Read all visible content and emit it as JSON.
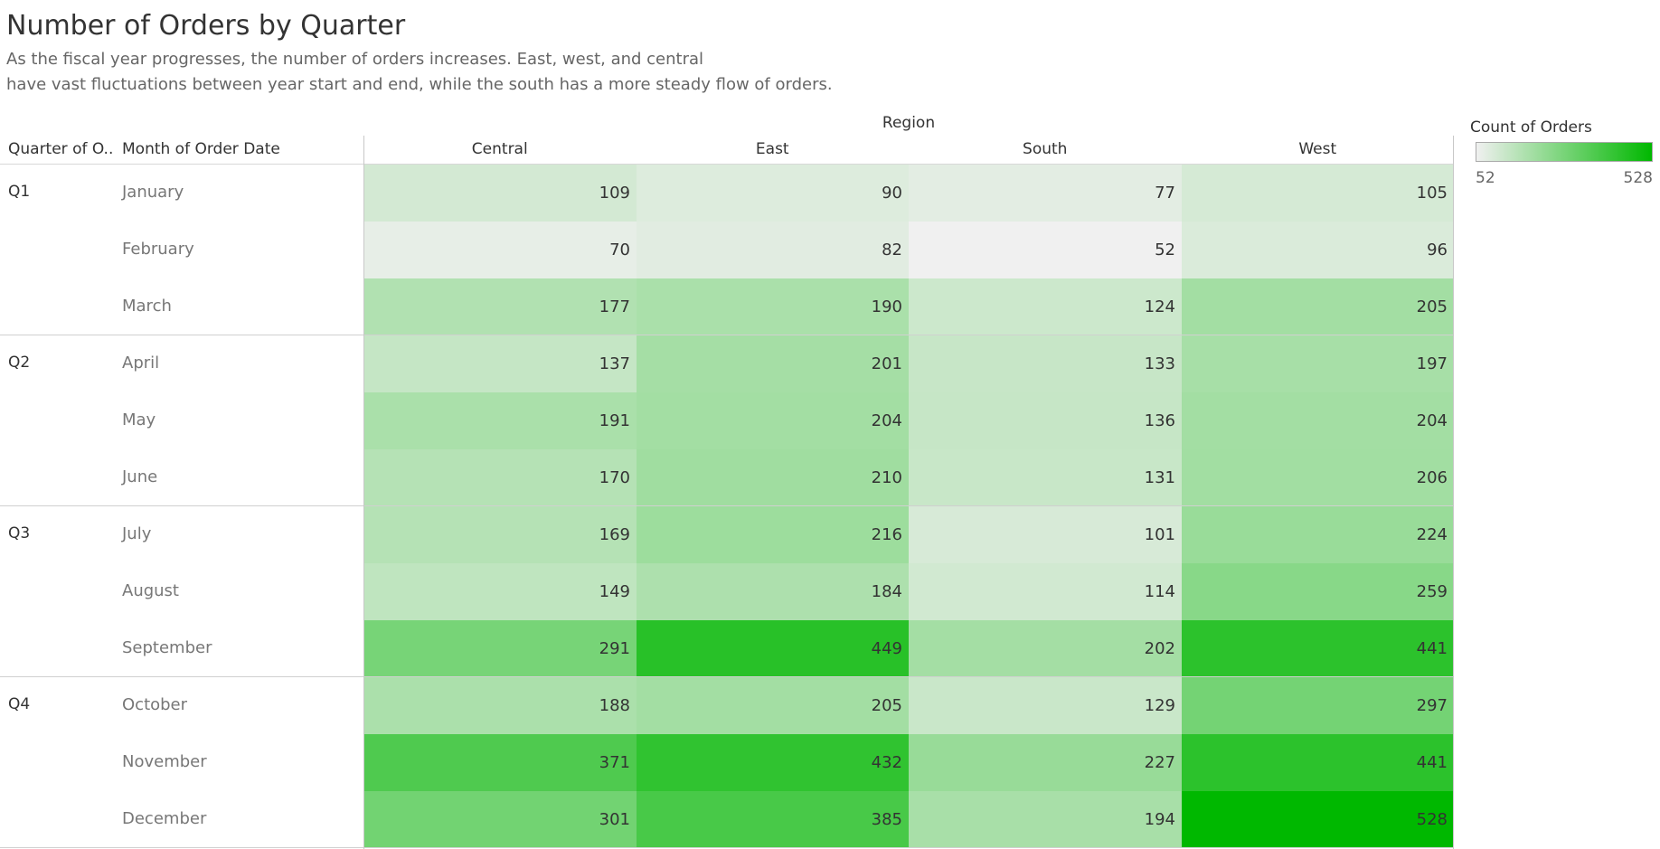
{
  "chart_data": {
    "type": "heatmap",
    "title": "Number of Orders by Quarter",
    "subtitle_lines": [
      "As the fiscal year progresses, the number of orders increases. East, west, and central",
      "have vast fluctuations between year start and end, while the south has a more steady flow of orders."
    ],
    "column_group_label": "Region",
    "row_headers": [
      "Quarter of O..",
      "Month of Order Date"
    ],
    "columns": [
      "Central",
      "East",
      "South",
      "West"
    ],
    "quarters": [
      {
        "label": "Q1",
        "months": [
          {
            "month": "January",
            "values": [
              109,
              90,
              77,
              105
            ]
          },
          {
            "month": "February",
            "values": [
              70,
              82,
              52,
              96
            ]
          },
          {
            "month": "March",
            "values": [
              177,
              190,
              124,
              205
            ]
          }
        ]
      },
      {
        "label": "Q2",
        "months": [
          {
            "month": "April",
            "values": [
              137,
              201,
              133,
              197
            ]
          },
          {
            "month": "May",
            "values": [
              191,
              204,
              136,
              204
            ]
          },
          {
            "month": "June",
            "values": [
              170,
              210,
              131,
              206
            ]
          }
        ]
      },
      {
        "label": "Q3",
        "months": [
          {
            "month": "July",
            "values": [
              169,
              216,
              101,
              224
            ]
          },
          {
            "month": "August",
            "values": [
              149,
              184,
              114,
              259
            ]
          },
          {
            "month": "September",
            "values": [
              291,
              449,
              202,
              441
            ]
          }
        ]
      },
      {
        "label": "Q4",
        "months": [
          {
            "month": "October",
            "values": [
              188,
              205,
              129,
              297
            ]
          },
          {
            "month": "November",
            "values": [
              371,
              432,
              227,
              441
            ]
          },
          {
            "month": "December",
            "values": [
              301,
              385,
              194,
              528
            ]
          }
        ]
      }
    ],
    "legend": {
      "title": "Count of Orders",
      "min": 52,
      "max": 528,
      "color_low": "#f0f0f0",
      "color_high": "#00b800"
    }
  }
}
